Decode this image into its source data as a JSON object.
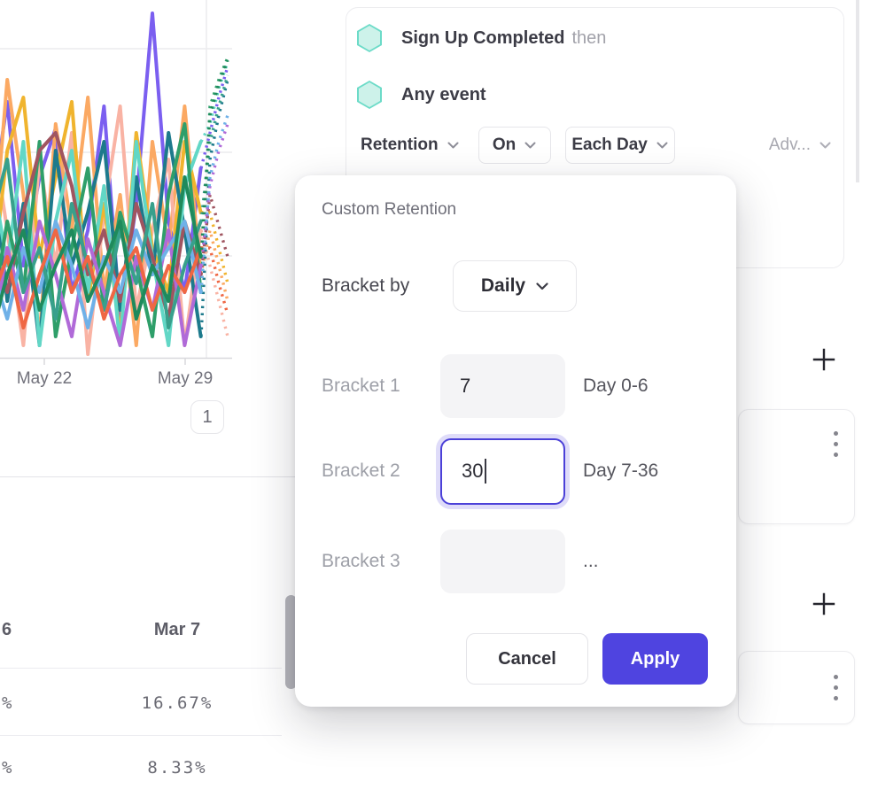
{
  "chart": {
    "x_tick_labels": [
      "May 22",
      "May 29"
    ],
    "pagination_label": "1",
    "series": [
      {
        "color": "#7b5ff0",
        "ys": [
          240,
          115,
          300,
          200,
          145,
          330,
          260,
          120,
          360,
          230,
          15,
          250,
          330,
          190
        ],
        "dots": [
          150,
          110,
          75
        ]
      },
      {
        "color": "#fba963",
        "ys": [
          310,
          90,
          220,
          380,
          140,
          260,
          110,
          330,
          220,
          390,
          160,
          280,
          120,
          310
        ],
        "dots": [
          260,
          300,
          340
        ]
      },
      {
        "color": "#f9b3a4",
        "ys": [
          140,
          260,
          390,
          180,
          300,
          150,
          400,
          240,
          120,
          350,
          260,
          180,
          390,
          260
        ],
        "dots": [
          300,
          340,
          380
        ]
      },
      {
        "color": "#f0b42e",
        "ys": [
          330,
          170,
          110,
          290,
          200,
          115,
          340,
          230,
          380,
          150,
          280,
          330,
          160,
          240
        ],
        "dots": [
          240,
          280,
          320
        ]
      },
      {
        "color": "#1d7a8c",
        "ys": [
          160,
          340,
          230,
          390,
          170,
          300,
          240,
          160,
          350,
          200,
          310,
          150,
          260,
          380
        ],
        "dots": [
          180,
          130,
          90
        ]
      },
      {
        "color": "#62d7c6",
        "ys": [
          190,
          300,
          160,
          390,
          250,
          170,
          330,
          210,
          390,
          160,
          290,
          390,
          210,
          160
        ],
        "dots": [
          140,
          100,
          70
        ]
      },
      {
        "color": "#2f9f6a",
        "ys": [
          360,
          250,
          330,
          160,
          380,
          280,
          190,
          350,
          240,
          300,
          380,
          220,
          140,
          330
        ],
        "dots": [
          120,
          90,
          65
        ]
      },
      {
        "color": "#a05560",
        "ys": [
          280,
          330,
          240,
          170,
          150,
          210,
          310,
          260,
          340,
          230,
          290,
          360,
          250,
          310
        ],
        "dots": [
          220,
          255,
          290
        ]
      },
      {
        "color": "#b06ad8",
        "ys": [
          390,
          280,
          350,
          250,
          310,
          380,
          270,
          330,
          390,
          290,
          350,
          260,
          390,
          300
        ],
        "dots": [
          210,
          170,
          140
        ]
      },
      {
        "color": "#6fb1e8",
        "ys": [
          300,
          360,
          280,
          330,
          250,
          300,
          370,
          290,
          330,
          260,
          310,
          280,
          250,
          330
        ],
        "dots": [
          200,
          160,
          130
        ]
      },
      {
        "color": "#38a08c",
        "ys": [
          250,
          180,
          330,
          280,
          360,
          230,
          300,
          350,
          260,
          320,
          230,
          370,
          300,
          250
        ],
        "dots": [
          160,
          120,
          85
        ]
      },
      {
        "color": "#ef6744",
        "ys": [
          340,
          290,
          370,
          310,
          260,
          330,
          290,
          360,
          310,
          280,
          350,
          300,
          330,
          280
        ],
        "dots": [
          280,
          320,
          355
        ]
      },
      {
        "color": "#1f8a5c",
        "ys": [
          380,
          310,
          260,
          350,
          300,
          260,
          340,
          300,
          250,
          360,
          300,
          340,
          200,
          290
        ],
        "dots": [
          130,
          95,
          68
        ]
      }
    ]
  },
  "table": {
    "header_cells": [
      "6",
      "Mar 7"
    ],
    "rows": [
      {
        "col1": "%",
        "col2": "16.67%"
      },
      {
        "col1": "%",
        "col2": "8.33%"
      }
    ]
  },
  "query_panel": {
    "steps": [
      {
        "name": "Sign Up Completed",
        "suffix": "then"
      },
      {
        "name": "Any event",
        "suffix": ""
      }
    ],
    "controls": {
      "retention": "Retention",
      "on": "On",
      "each_day": "Each Day",
      "advanced": "Adv..."
    }
  },
  "modal": {
    "title": "Custom Retention",
    "bracket_by_label": "Bracket by",
    "bracket_by_value": "Daily",
    "brackets": [
      {
        "label": "Bracket 1",
        "value": "7",
        "range": "Day 0-6",
        "state": "normal"
      },
      {
        "label": "Bracket 2",
        "value": "30",
        "range": "Day 7-36",
        "state": "focused"
      },
      {
        "label": "Bracket 3",
        "value": "",
        "range": "...",
        "state": "normal"
      }
    ],
    "cancel_label": "Cancel",
    "apply_label": "Apply"
  },
  "colors": {
    "accent": "#4f44e0",
    "focus_border": "#4b40d8",
    "focus_ring": "#dfdcf9",
    "hexagon_fill": "#cdf2ea",
    "hexagon_border": "#6cdbc8",
    "muted_text": "#9ea0a8",
    "scrollbar_thumb": "#b5b5bb",
    "gridline": "#ececee"
  }
}
